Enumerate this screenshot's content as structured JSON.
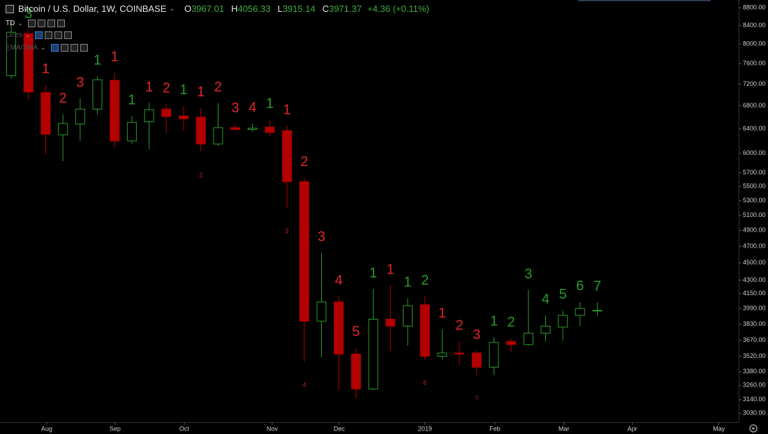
{
  "header": {
    "symbol": "Bitcoin / U.S. Dollar, 1W, COINBASE",
    "ohlc": [
      {
        "key": "O",
        "value": "3967.01"
      },
      {
        "key": "H",
        "value": "4056.33"
      },
      {
        "key": "L",
        "value": "3915.14"
      },
      {
        "key": "C",
        "value": "3971.37"
      }
    ],
    "change": "+4.36 (+0.11%)"
  },
  "indicators": [
    "TD",
    "Lines",
    "EMA/SMA"
  ],
  "chart_data": {
    "type": "candlestick",
    "log_scale": true,
    "grid": false,
    "up_color": "#2c9a2c",
    "down_color": "#b30000",
    "x": [
      0,
      1,
      2,
      3,
      4,
      5,
      6,
      7,
      8,
      9,
      10,
      11,
      12,
      13,
      14,
      15,
      16,
      17,
      18,
      19,
      20,
      21,
      22,
      23,
      24,
      25,
      26,
      27,
      28,
      29,
      30,
      31,
      32,
      33,
      34
    ],
    "open": [
      7360,
      8220,
      7040,
      6300,
      6480,
      6740,
      7270,
      6200,
      6520,
      6740,
      6620,
      6600,
      6150,
      6420,
      6390,
      6430,
      6370,
      5570,
      3860,
      4060,
      3540,
      3230,
      3880,
      3810,
      4030,
      3520,
      3550,
      3550,
      3420,
      3660,
      3630,
      3740,
      3800,
      3920,
      3967.01
    ],
    "high": [
      8500,
      8300,
      7180,
      6650,
      6930,
      7350,
      7420,
      6620,
      6850,
      6830,
      6800,
      6760,
      6850,
      6480,
      6490,
      6560,
      6450,
      5630,
      4620,
      4120,
      3600,
      4200,
      4240,
      4100,
      4120,
      3780,
      3660,
      3570,
      3700,
      3690,
      4190,
      3920,
      3970,
      4060,
      4056.33
    ],
    "low": [
      7300,
      6900,
      5990,
      5880,
      6200,
      6650,
      6080,
      6150,
      6070,
      6330,
      6380,
      6030,
      6120,
      6370,
      6350,
      6280,
      5200,
      3470,
      3510,
      3220,
      3150,
      3220,
      3570,
      3620,
      3490,
      3490,
      3440,
      3350,
      3350,
      3560,
      3620,
      3660,
      3670,
      3810,
      3915.14
    ],
    "close": [
      8250,
      7050,
      6310,
      6490,
      6740,
      7280,
      6200,
      6510,
      6730,
      6610,
      6570,
      6150,
      6420,
      6390,
      6410,
      6340,
      5570,
      3860,
      4060,
      3540,
      3230,
      3880,
      3810,
      4020,
      3520,
      3550,
      3540,
      3420,
      3650,
      3630,
      3740,
      3810,
      3920,
      3990,
      3971.37
    ],
    "sell_setup": {
      "color": "#2a9a2a",
      "values": [
        null,
        3,
        null,
        null,
        null,
        1,
        null,
        1,
        null,
        null,
        1,
        null,
        null,
        null,
        null,
        1,
        null,
        null,
        null,
        null,
        null,
        1,
        null,
        1,
        2,
        null,
        null,
        null,
        1,
        2,
        3,
        4,
        5,
        6,
        7
      ]
    },
    "buy_setup": {
      "color": "#e3262a",
      "values": [
        null,
        null,
        1,
        2,
        3,
        null,
        1,
        null,
        1,
        2,
        null,
        1,
        2,
        3,
        4,
        null,
        1,
        2,
        3,
        4,
        5,
        null,
        1,
        null,
        null,
        1,
        2,
        3,
        null,
        null,
        null,
        null,
        null,
        null,
        null
      ]
    },
    "countdown": {
      "color": "#c81e1e",
      "values": [
        null,
        null,
        null,
        null,
        null,
        null,
        null,
        null,
        null,
        null,
        null,
        2,
        null,
        null,
        null,
        null,
        3,
        4,
        null,
        null,
        null,
        null,
        null,
        null,
        6,
        null,
        null,
        7,
        null,
        null,
        null,
        null,
        null,
        null,
        null
      ]
    },
    "xlim": [
      -0.65,
      42.2
    ],
    "xticks": [
      {
        "value": 2.06,
        "label": "Aug"
      },
      {
        "value": 6.03,
        "label": "Sep"
      },
      {
        "value": 10.04,
        "label": "Oct"
      },
      {
        "value": 15.14,
        "label": "Nov"
      },
      {
        "value": 19.03,
        "label": "Dec"
      },
      {
        "value": 24.0,
        "label": "2019"
      },
      {
        "value": 28.06,
        "label": "Feb"
      },
      {
        "value": 32.06,
        "label": "Mar"
      },
      {
        "value": 36.03,
        "label": "Apr"
      },
      {
        "value": 41.05,
        "label": "May"
      }
    ],
    "ylim": [
      2960,
      8980
    ],
    "yticks": [
      {
        "value": 8800,
        "label": "8800.00"
      },
      {
        "value": 8400,
        "label": "8400.00"
      },
      {
        "value": 8000,
        "label": "8000.00"
      },
      {
        "value": 7600,
        "label": "7600.00"
      },
      {
        "value": 7200,
        "label": "7200.00"
      },
      {
        "value": 6800,
        "label": "6800.00"
      },
      {
        "value": 6400,
        "label": "6400.00"
      },
      {
        "value": 6000,
        "label": "6000.00"
      },
      {
        "value": 5700,
        "label": "5700.00"
      },
      {
        "value": 5500,
        "label": "5500.00"
      },
      {
        "value": 5300,
        "label": "5300.00"
      },
      {
        "value": 5100,
        "label": "5100.00"
      },
      {
        "value": 4900,
        "label": "4900.00"
      },
      {
        "value": 4700,
        "label": "4700.00"
      },
      {
        "value": 4500,
        "label": "4500.00"
      },
      {
        "value": 4300,
        "label": "4300.00"
      },
      {
        "value": 4150,
        "label": "4150.00"
      },
      {
        "value": 3990,
        "label": "3990.00"
      },
      {
        "value": 3830,
        "label": "3830.00"
      },
      {
        "value": 3670,
        "label": "3670.00"
      },
      {
        "value": 3520,
        "label": "3520.00"
      },
      {
        "value": 3380,
        "label": "3380.00"
      },
      {
        "value": 3260,
        "label": "3260.00"
      },
      {
        "value": 3140,
        "label": "3140.00"
      },
      {
        "value": 3030,
        "label": "3030.00"
      }
    ]
  }
}
